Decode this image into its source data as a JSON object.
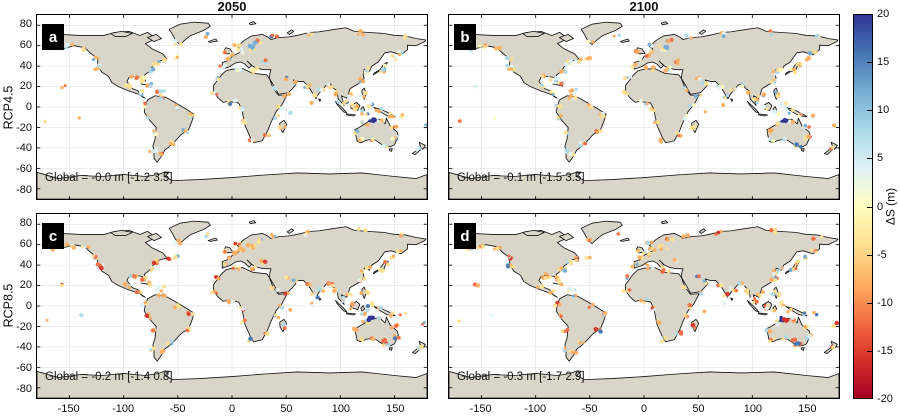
{
  "chart_data": {
    "type": "scatter",
    "subtype": "geographic-coastal-scatter, 2x2 panel grid of world maps",
    "columns": [
      "2050",
      "2100"
    ],
    "rows": [
      "RCP4.5",
      "RCP8.5"
    ],
    "panels": [
      {
        "id": "a",
        "scenario": "RCP4.5",
        "year": "2050",
        "palette": "rcp45",
        "global_text": "Global = -0.0 m [-1.2 3.5]",
        "global_mean_m": -0.0,
        "range_m": [
          -1.2,
          3.5
        ]
      },
      {
        "id": "b",
        "scenario": "RCP4.5",
        "year": "2100",
        "palette": "rcp45",
        "global_text": "Global = -0.1 m [-1.5 3.5]",
        "global_mean_m": -0.1,
        "range_m": [
          -1.5,
          3.5
        ]
      },
      {
        "id": "c",
        "scenario": "RCP8.5",
        "year": "2050",
        "palette": "rcp85",
        "global_text": "Global = -0.2 m [-1.4 0.8]",
        "global_mean_m": -0.2,
        "range_m": [
          -1.4,
          0.8
        ]
      },
      {
        "id": "d",
        "scenario": "RCP8.5",
        "year": "2100",
        "palette": "rcp85",
        "global_text": "Global = -0.3 m [-1.7 2.9]",
        "global_mean_m": -0.3,
        "range_m": [
          -1.7,
          2.9
        ]
      }
    ],
    "x_axis": {
      "range": [
        -180,
        180
      ],
      "ticks": [
        -150,
        -100,
        -50,
        0,
        50,
        100,
        150
      ]
    },
    "y_axis": {
      "range": [
        -90,
        90
      ],
      "ticks": [
        80,
        60,
        40,
        20,
        0,
        -20,
        -40,
        -60,
        -80
      ]
    },
    "colorbar": {
      "label": "ΔS (m)",
      "range": [
        -20,
        20
      ],
      "ticks": [
        20,
        15,
        10,
        5,
        0,
        -5,
        -10,
        -15,
        -20
      ],
      "colors_top_to_bottom": [
        "#313695",
        "#4575b4",
        "#74add1",
        "#abd9e9",
        "#e0f3f8",
        "#ffffbf",
        "#fee090",
        "#fdae61",
        "#f46d43",
        "#d73027",
        "#a50026"
      ]
    },
    "map_style": {
      "land": "#d9d6c9",
      "coast": "#141414",
      "ocean": "#ffffff",
      "grid": "#dcdcdc"
    },
    "dot_palettes": {
      "rcp45": [
        [
          "#fee090",
          0.3
        ],
        [
          "#fdae61",
          0.2
        ],
        [
          "#f46d43",
          0.07
        ],
        [
          "#abd9e9",
          0.14
        ],
        [
          "#e0f3f8",
          0.15
        ],
        [
          "#74add1",
          0.06
        ],
        [
          "#ffffbf",
          0.06
        ],
        [
          "#4575b4",
          0.02
        ]
      ],
      "rcp85": [
        [
          "#fee090",
          0.34
        ],
        [
          "#fdae61",
          0.26
        ],
        [
          "#f46d43",
          0.11
        ],
        [
          "#abd9e9",
          0.1
        ],
        [
          "#e0f3f8",
          0.09
        ],
        [
          "#74add1",
          0.04
        ],
        [
          "#d73027",
          0.04
        ],
        [
          "#4575b4",
          0.02
        ]
      ]
    },
    "dot_anchors": [
      [
        -123,
        39,
        5,
        4
      ],
      [
        -125,
        48,
        4,
        3
      ],
      [
        -135,
        57,
        4,
        3
      ],
      [
        -150,
        59,
        4,
        4
      ],
      [
        -163,
        56,
        3,
        4
      ],
      [
        -70,
        43,
        5,
        3
      ],
      [
        -75,
        36,
        4,
        3
      ],
      [
        -81,
        27,
        4,
        3
      ],
      [
        -90,
        29,
        5,
        4
      ],
      [
        -96,
        20,
        4,
        3
      ],
      [
        -85,
        14,
        3,
        3
      ],
      [
        -66,
        17,
        4,
        4
      ],
      [
        -77,
        22,
        3,
        3
      ],
      [
        -60,
        46,
        3,
        3
      ],
      [
        -52,
        48,
        3,
        2
      ],
      [
        -50,
        63,
        3,
        3
      ],
      [
        -25,
        70,
        2,
        3
      ],
      [
        -66,
        10,
        4,
        4
      ],
      [
        -50,
        0,
        3,
        3
      ],
      [
        -38,
        -8,
        4,
        3
      ],
      [
        -42,
        -24,
        4,
        3
      ],
      [
        -57,
        -36,
        4,
        3
      ],
      [
        -65,
        -45,
        3,
        3
      ],
      [
        -73,
        -42,
        3,
        3
      ],
      [
        -72,
        -25,
        3,
        3
      ],
      [
        -77,
        -10,
        3,
        3
      ],
      [
        -80,
        2,
        3,
        3
      ],
      [
        -9,
        40,
        3,
        3
      ],
      [
        -3,
        47,
        3,
        2
      ],
      [
        2,
        51,
        4,
        3
      ],
      [
        8,
        55,
        4,
        3
      ],
      [
        18,
        58,
        5,
        4
      ],
      [
        5,
        61,
        4,
        3
      ],
      [
        24,
        64,
        3,
        3
      ],
      [
        -6,
        54,
        3,
        2
      ],
      [
        -15,
        28,
        3,
        3
      ],
      [
        5,
        38,
        4,
        4
      ],
      [
        20,
        36,
        4,
        4
      ],
      [
        30,
        44,
        3,
        3
      ],
      [
        -16,
        14,
        3,
        3
      ],
      [
        0,
        5,
        4,
        4
      ],
      [
        9,
        -2,
        3,
        3
      ],
      [
        12,
        -15,
        3,
        3
      ],
      [
        18,
        -33,
        4,
        3
      ],
      [
        32,
        -27,
        3,
        3
      ],
      [
        40,
        -10,
        3,
        3
      ],
      [
        45,
        0,
        2,
        3
      ],
      [
        50,
        12,
        2,
        3
      ],
      [
        39,
        17,
        3,
        3
      ],
      [
        57,
        24,
        3,
        3
      ],
      [
        50,
        28,
        3,
        2
      ],
      [
        47,
        -20,
        3,
        3
      ],
      [
        70,
        20,
        4,
        3
      ],
      [
        76,
        10,
        3,
        3
      ],
      [
        83,
        16,
        4,
        3
      ],
      [
        90,
        21,
        4,
        3
      ],
      [
        96,
        14,
        3,
        3
      ],
      [
        102,
        6,
        4,
        4
      ],
      [
        108,
        12,
        3,
        3
      ],
      [
        114,
        0,
        4,
        5
      ],
      [
        122,
        -6,
        4,
        4
      ],
      [
        128,
        2,
        3,
        4
      ],
      [
        122,
        12,
        4,
        4
      ],
      [
        135,
        -4,
        3,
        4
      ],
      [
        146,
        -8,
        3,
        3
      ],
      [
        120,
        26,
        4,
        3
      ],
      [
        122,
        33,
        4,
        3
      ],
      [
        126,
        37,
        3,
        2
      ],
      [
        138,
        35,
        4,
        3
      ],
      [
        142,
        42,
        3,
        3
      ],
      [
        150,
        48,
        3,
        3
      ],
      [
        156,
        53,
        3,
        3
      ],
      [
        40,
        68,
        3,
        4
      ],
      [
        70,
        71,
        3,
        4
      ],
      [
        120,
        73,
        3,
        4
      ],
      [
        160,
        68,
        2,
        4
      ],
      [
        -170,
        64,
        2,
        3
      ],
      [
        115,
        -24,
        3,
        3
      ],
      [
        118,
        -33,
        3,
        3
      ],
      [
        130,
        -32,
        3,
        3
      ],
      [
        142,
        -38,
        4,
        3
      ],
      [
        151,
        -30,
        4,
        3
      ],
      [
        150,
        -20,
        3,
        3
      ],
      [
        137,
        -13,
        3,
        3
      ],
      [
        123,
        -16,
        3,
        3
      ],
      [
        172,
        -40,
        3,
        3
      ],
      [
        158,
        -8,
        2,
        3
      ],
      [
        178,
        -18,
        2,
        3
      ],
      [
        -155,
        20,
        2,
        2
      ],
      [
        -172,
        -14,
        1,
        2
      ],
      [
        -140,
        -10,
        1,
        2
      ],
      [
        55,
        -5,
        1,
        2
      ],
      [
        73,
        3,
        1,
        2
      ]
    ],
    "special_clusters": [
      {
        "panels": [
          "a",
          "b",
          "c",
          "d"
        ],
        "lon": 129,
        "lat": -13,
        "n": 5,
        "spread": 3,
        "color": "#313695"
      },
      {
        "panels": [
          "a",
          "b"
        ],
        "lon": 19,
        "lat": 58.5,
        "n": 4,
        "spread": 2.5,
        "color": "#74add1"
      },
      {
        "panels": [
          "b",
          "d"
        ],
        "lon": 142,
        "lat": -36,
        "n": 3,
        "spread": 2,
        "color": "#4575b4"
      },
      {
        "panels": [
          "c",
          "d"
        ],
        "lon": 139,
        "lat": -34,
        "n": 3,
        "spread": 2,
        "color": "#f46d43"
      },
      {
        "panels": [
          "d"
        ],
        "lon": 131,
        "lat": -14,
        "n": 4,
        "spread": 2,
        "color": "#d73027"
      }
    ]
  }
}
